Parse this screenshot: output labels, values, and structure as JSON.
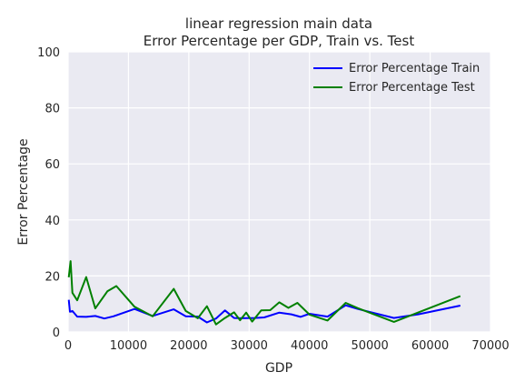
{
  "chart_data": {
    "type": "line",
    "title": [
      "linear regression main data",
      "Error Percentage per GDP, Train vs. Test"
    ],
    "xlabel": "GDP",
    "ylabel": "Error Percentage",
    "xlim": [
      0,
      70000
    ],
    "ylim": [
      0,
      100
    ],
    "xticks": [
      0,
      10000,
      20000,
      30000,
      40000,
      50000,
      60000,
      70000
    ],
    "yticks": [
      0,
      20,
      40,
      60,
      80,
      100
    ],
    "grid": true,
    "legend_position": "top-right",
    "background": "#eaeaf2",
    "series": [
      {
        "name": "Error Percentage Train",
        "color": "#0000ff",
        "points": [
          [
            100,
            11.5
          ],
          [
            300,
            7.2
          ],
          [
            700,
            7.5
          ],
          [
            1500,
            5.5
          ],
          [
            3000,
            5.4
          ],
          [
            4500,
            5.7
          ],
          [
            6000,
            4.8
          ],
          [
            7500,
            5.6
          ],
          [
            11000,
            8.2
          ],
          [
            14000,
            5.7
          ],
          [
            17500,
            8.1
          ],
          [
            19500,
            5.6
          ],
          [
            21500,
            5.5
          ],
          [
            23000,
            3.4
          ],
          [
            24500,
            4.8
          ],
          [
            26000,
            7.7
          ],
          [
            27500,
            5.0
          ],
          [
            28500,
            4.9
          ],
          [
            31000,
            5.0
          ],
          [
            32500,
            5.2
          ],
          [
            35000,
            6.9
          ],
          [
            37000,
            6.3
          ],
          [
            38500,
            5.4
          ],
          [
            40000,
            6.5
          ],
          [
            43000,
            5.5
          ],
          [
            46000,
            9.5
          ],
          [
            48000,
            8.2
          ],
          [
            54000,
            5.0
          ],
          [
            58000,
            6.3
          ],
          [
            65000,
            9.4
          ]
        ]
      },
      {
        "name": "Error Percentage Test",
        "color": "#008000",
        "points": [
          [
            100,
            19.5
          ],
          [
            400,
            25.3
          ],
          [
            700,
            14.0
          ],
          [
            1500,
            11.3
          ],
          [
            3000,
            19.6
          ],
          [
            4500,
            8.4
          ],
          [
            6500,
            14.5
          ],
          [
            8000,
            16.4
          ],
          [
            11000,
            9.0
          ],
          [
            14000,
            5.6
          ],
          [
            17500,
            15.4
          ],
          [
            19500,
            7.5
          ],
          [
            21500,
            4.9
          ],
          [
            23000,
            9.2
          ],
          [
            24500,
            2.7
          ],
          [
            26000,
            5.0
          ],
          [
            27500,
            7.0
          ],
          [
            28500,
            4.2
          ],
          [
            29500,
            6.9
          ],
          [
            30500,
            3.7
          ],
          [
            32000,
            7.7
          ],
          [
            33500,
            7.8
          ],
          [
            35000,
            10.6
          ],
          [
            36500,
            8.6
          ],
          [
            38000,
            10.4
          ],
          [
            40000,
            6.2
          ],
          [
            43000,
            4.1
          ],
          [
            46000,
            10.4
          ],
          [
            48000,
            8.5
          ],
          [
            54000,
            3.6
          ],
          [
            65000,
            12.8
          ]
        ]
      }
    ]
  }
}
